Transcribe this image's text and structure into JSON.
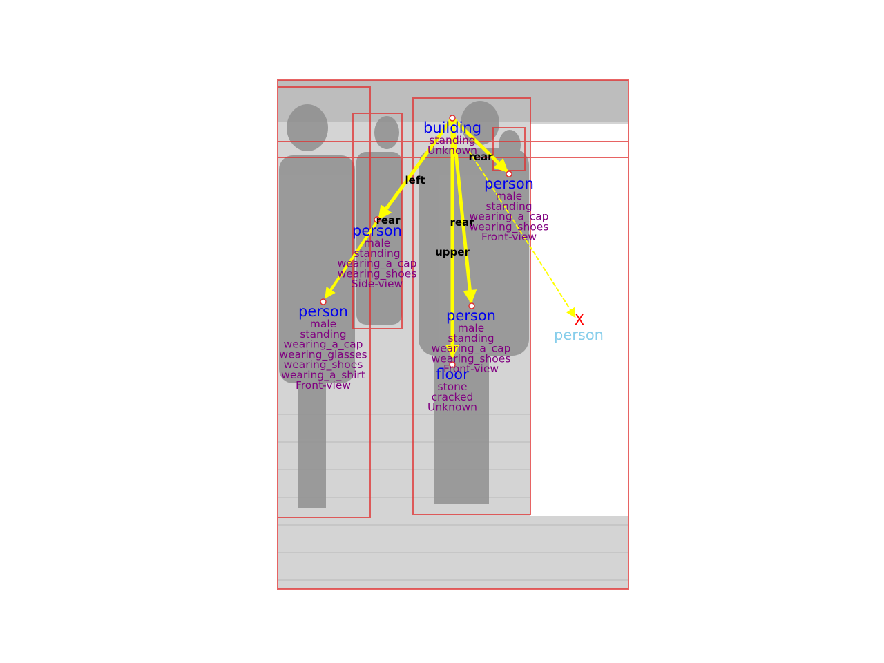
{
  "colors": {
    "box": "#e03030",
    "arrow": "#ffff00",
    "head_node": "#0000ee",
    "attribute": "#800080",
    "relation": "#000000",
    "missing_marker": "#ff0000",
    "missing_label": "#87ceeb",
    "photo_bg": "#cfcfcf"
  },
  "nodes": {
    "building": {
      "label": "building",
      "attributes": [
        "standing",
        "Unknown"
      ]
    },
    "person_right": {
      "label": "person",
      "attributes": [
        "male",
        "standing",
        "wearing_a_cap",
        "wearing_shoes",
        "Front-view"
      ]
    },
    "person_middle": {
      "label": "person",
      "attributes": [
        "male",
        "standing",
        "wearing_a_cap",
        "wearing_shoes",
        "Side-view"
      ]
    },
    "person_left": {
      "label": "person",
      "attributes": [
        "male",
        "standing",
        "wearing_a_cap",
        "wearing_glasses",
        "wearing_shoes",
        "wearing_a_shirt",
        "Front-view"
      ]
    },
    "person_center": {
      "label": "person",
      "attributes": [
        "male",
        "standing",
        "wearing_a_cap",
        "wearing_shoes",
        "Front-view"
      ]
    },
    "floor": {
      "label": "floor",
      "attributes": [
        "stone",
        "cracked",
        "Unknown"
      ]
    },
    "missing_person": {
      "marker": "X",
      "label": "person"
    }
  },
  "relations": {
    "rear_right": "rear",
    "left": "left",
    "rear_middle": "rear",
    "rear_center": "rear",
    "upper": "upper"
  }
}
